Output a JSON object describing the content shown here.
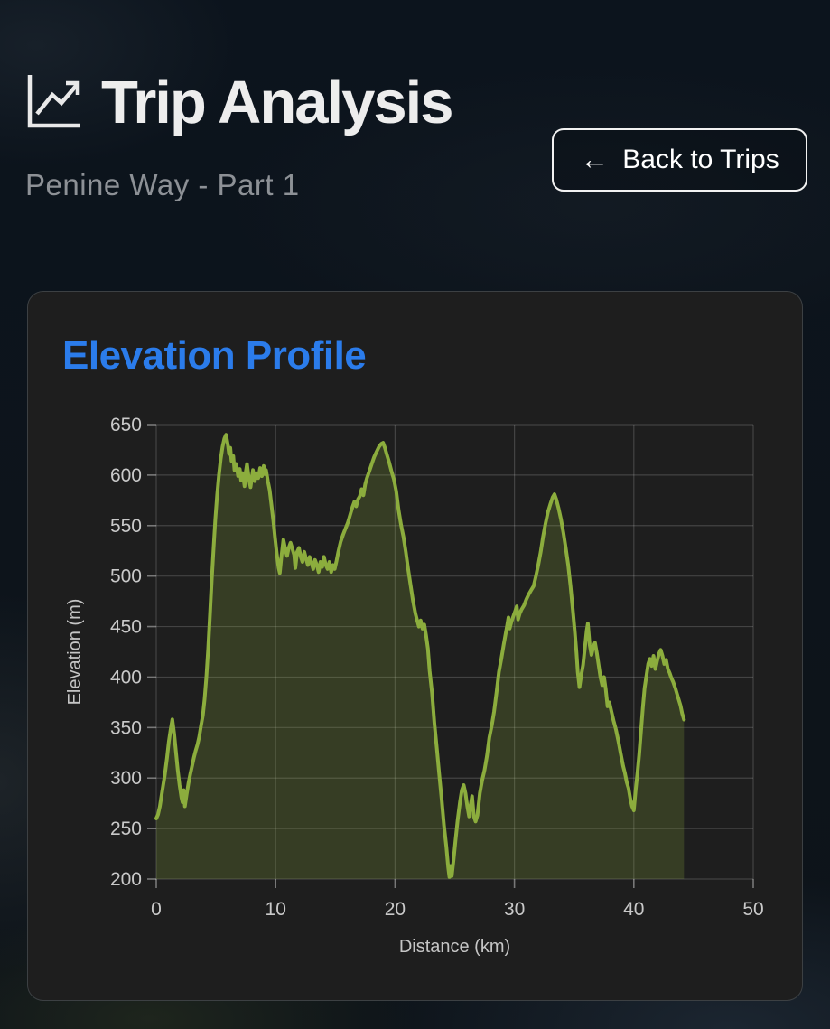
{
  "header": {
    "title": "Trip Analysis",
    "subtitle": "Penine Way - Part 1",
    "icon": "chart-line-up-icon",
    "back_arrow": "←",
    "back_label": "Back to Trips"
  },
  "card": {
    "title": "Elevation Profile",
    "title_color": "#2b7ceb"
  },
  "colors": {
    "accent_blue": "#2b7ceb",
    "line_green": "#8cad3d",
    "fill_green": "rgba(140,173,61,0.22)",
    "card_bg": "#1e1e1e",
    "text_light": "#ededed",
    "text_gray": "#8d9196",
    "axis_gray": "#c9c9c9"
  },
  "chart_data": {
    "type": "area",
    "title": "Elevation Profile",
    "xlabel": "Distance (km)",
    "ylabel": "Elevation (m)",
    "xlim": [
      0,
      50
    ],
    "ylim": [
      200,
      650
    ],
    "x_ticks": [
      0,
      10,
      20,
      30,
      40,
      50
    ],
    "y_ticks": [
      200,
      250,
      300,
      350,
      400,
      450,
      500,
      550,
      600,
      650
    ],
    "grid": true,
    "legend": false,
    "series": [
      {
        "name": "elevation",
        "points": [
          [
            0,
            260
          ],
          [
            0.15,
            264
          ],
          [
            0.3,
            272
          ],
          [
            0.5,
            287
          ],
          [
            0.7,
            302
          ],
          [
            0.9,
            320
          ],
          [
            1.05,
            336
          ],
          [
            1.2,
            348
          ],
          [
            1.35,
            358
          ],
          [
            1.5,
            344
          ],
          [
            1.65,
            326
          ],
          [
            1.8,
            308
          ],
          [
            1.95,
            293
          ],
          [
            2.1,
            281
          ],
          [
            2.2,
            276
          ],
          [
            2.3,
            288
          ],
          [
            2.4,
            272
          ],
          [
            2.55,
            284
          ],
          [
            2.7,
            295
          ],
          [
            2.85,
            304
          ],
          [
            3,
            312
          ],
          [
            3.15,
            320
          ],
          [
            3.3,
            327
          ],
          [
            3.45,
            333
          ],
          [
            3.6,
            341
          ],
          [
            3.75,
            352
          ],
          [
            3.9,
            362
          ],
          [
            4.05,
            378
          ],
          [
            4.2,
            400
          ],
          [
            4.35,
            428
          ],
          [
            4.5,
            462
          ],
          [
            4.65,
            497
          ],
          [
            4.8,
            528
          ],
          [
            4.95,
            556
          ],
          [
            5.1,
            580
          ],
          [
            5.25,
            600
          ],
          [
            5.4,
            616
          ],
          [
            5.55,
            628
          ],
          [
            5.7,
            636
          ],
          [
            5.85,
            640
          ],
          [
            6,
            630
          ],
          [
            6.1,
            621
          ],
          [
            6.2,
            627
          ],
          [
            6.3,
            614
          ],
          [
            6.45,
            619
          ],
          [
            6.55,
            605
          ],
          [
            6.7,
            611
          ],
          [
            6.85,
            599
          ],
          [
            7,
            606
          ],
          [
            7.1,
            595
          ],
          [
            7.25,
            602
          ],
          [
            7.4,
            589
          ],
          [
            7.5,
            603
          ],
          [
            7.6,
            611
          ],
          [
            7.75,
            597
          ],
          [
            7.9,
            588
          ],
          [
            8,
            597
          ],
          [
            8.1,
            605
          ],
          [
            8.25,
            594
          ],
          [
            8.4,
            602
          ],
          [
            8.55,
            597
          ],
          [
            8.7,
            607
          ],
          [
            8.85,
            599
          ],
          [
            9,
            609
          ],
          [
            9.1,
            601
          ],
          [
            9.2,
            605
          ],
          [
            9.35,
            594
          ],
          [
            9.5,
            585
          ],
          [
            9.65,
            570
          ],
          [
            9.8,
            555
          ],
          [
            9.95,
            538
          ],
          [
            10.1,
            522
          ],
          [
            10.25,
            508
          ],
          [
            10.35,
            503
          ],
          [
            10.5,
            521
          ],
          [
            10.65,
            536
          ],
          [
            10.8,
            527
          ],
          [
            10.95,
            520
          ],
          [
            11.1,
            528
          ],
          [
            11.25,
            533
          ],
          [
            11.4,
            527
          ],
          [
            11.55,
            521
          ],
          [
            11.65,
            508
          ],
          [
            11.8,
            524
          ],
          [
            11.95,
            528
          ],
          [
            12.1,
            519
          ],
          [
            12.25,
            514
          ],
          [
            12.4,
            524
          ],
          [
            12.55,
            517
          ],
          [
            12.7,
            511
          ],
          [
            12.85,
            519
          ],
          [
            13,
            513
          ],
          [
            13.15,
            507
          ],
          [
            13.3,
            516
          ],
          [
            13.45,
            511
          ],
          [
            13.6,
            504
          ],
          [
            13.75,
            514
          ],
          [
            13.9,
            509
          ],
          [
            14.05,
            519
          ],
          [
            14.2,
            511
          ],
          [
            14.35,
            507
          ],
          [
            14.5,
            514
          ],
          [
            14.65,
            504
          ],
          [
            14.8,
            511
          ],
          [
            14.95,
            507
          ],
          [
            15.1,
            515
          ],
          [
            15.25,
            524
          ],
          [
            15.45,
            534
          ],
          [
            15.65,
            541
          ],
          [
            15.85,
            547
          ],
          [
            16.05,
            553
          ],
          [
            16.25,
            561
          ],
          [
            16.45,
            569
          ],
          [
            16.6,
            574
          ],
          [
            16.75,
            569
          ],
          [
            16.9,
            576
          ],
          [
            17.05,
            579
          ],
          [
            17.2,
            586
          ],
          [
            17.35,
            580
          ],
          [
            17.5,
            591
          ],
          [
            17.65,
            597
          ],
          [
            17.85,
            604
          ],
          [
            18.05,
            611
          ],
          [
            18.25,
            618
          ],
          [
            18.45,
            623
          ],
          [
            18.65,
            628
          ],
          [
            18.85,
            631
          ],
          [
            19,
            632
          ],
          [
            19.15,
            627
          ],
          [
            19.3,
            621
          ],
          [
            19.5,
            613
          ],
          [
            19.7,
            604
          ],
          [
            19.9,
            596
          ],
          [
            20.1,
            584
          ],
          [
            20.3,
            565
          ],
          [
            20.5,
            551
          ],
          [
            20.7,
            539
          ],
          [
            20.9,
            524
          ],
          [
            21.1,
            507
          ],
          [
            21.3,
            491
          ],
          [
            21.5,
            476
          ],
          [
            21.7,
            463
          ],
          [
            21.85,
            456
          ],
          [
            22,
            450
          ],
          [
            22.15,
            456
          ],
          [
            22.3,
            448
          ],
          [
            22.45,
            452
          ],
          [
            22.6,
            441
          ],
          [
            22.75,
            428
          ],
          [
            22.9,
            406
          ],
          [
            23.1,
            384
          ],
          [
            23.3,
            354
          ],
          [
            23.5,
            329
          ],
          [
            23.7,
            304
          ],
          [
            23.9,
            279
          ],
          [
            24.1,
            253
          ],
          [
            24.3,
            232
          ],
          [
            24.45,
            212
          ],
          [
            24.55,
            202
          ],
          [
            24.65,
            213
          ],
          [
            24.75,
            203
          ],
          [
            24.9,
            219
          ],
          [
            25.05,
            237
          ],
          [
            25.25,
            259
          ],
          [
            25.45,
            277
          ],
          [
            25.6,
            288
          ],
          [
            25.75,
            293
          ],
          [
            25.9,
            285
          ],
          [
            26.05,
            272
          ],
          [
            26.2,
            262
          ],
          [
            26.3,
            271
          ],
          [
            26.45,
            282
          ],
          [
            26.6,
            262
          ],
          [
            26.75,
            257
          ],
          [
            26.9,
            263
          ],
          [
            27.1,
            285
          ],
          [
            27.3,
            298
          ],
          [
            27.5,
            308
          ],
          [
            27.7,
            322
          ],
          [
            27.9,
            340
          ],
          [
            28.1,
            352
          ],
          [
            28.3,
            366
          ],
          [
            28.5,
            385
          ],
          [
            28.7,
            405
          ],
          [
            28.9,
            418
          ],
          [
            29.1,
            432
          ],
          [
            29.25,
            442
          ],
          [
            29.4,
            452
          ],
          [
            29.5,
            459
          ],
          [
            29.6,
            448
          ],
          [
            29.75,
            455
          ],
          [
            29.9,
            460
          ],
          [
            30.05,
            465
          ],
          [
            30.2,
            470
          ],
          [
            30.3,
            457
          ],
          [
            30.45,
            463
          ],
          [
            30.6,
            467
          ],
          [
            30.8,
            471
          ],
          [
            31,
            477
          ],
          [
            31.2,
            482
          ],
          [
            31.4,
            486
          ],
          [
            31.6,
            490
          ],
          [
            31.8,
            500
          ],
          [
            32,
            511
          ],
          [
            32.2,
            524
          ],
          [
            32.4,
            539
          ],
          [
            32.6,
            552
          ],
          [
            32.8,
            563
          ],
          [
            33,
            571
          ],
          [
            33.2,
            578
          ],
          [
            33.35,
            581
          ],
          [
            33.5,
            576
          ],
          [
            33.7,
            567
          ],
          [
            33.9,
            556
          ],
          [
            34.1,
            543
          ],
          [
            34.3,
            528
          ],
          [
            34.5,
            511
          ],
          [
            34.7,
            490
          ],
          [
            34.9,
            465
          ],
          [
            35.05,
            445
          ],
          [
            35.2,
            424
          ],
          [
            35.3,
            405
          ],
          [
            35.45,
            390
          ],
          [
            35.6,
            402
          ],
          [
            35.75,
            412
          ],
          [
            35.9,
            429
          ],
          [
            36.05,
            446
          ],
          [
            36.15,
            453
          ],
          [
            36.3,
            432
          ],
          [
            36.45,
            422
          ],
          [
            36.6,
            430
          ],
          [
            36.75,
            434
          ],
          [
            36.9,
            424
          ],
          [
            37.05,
            412
          ],
          [
            37.2,
            400
          ],
          [
            37.35,
            392
          ],
          [
            37.5,
            400
          ],
          [
            37.65,
            388
          ],
          [
            37.8,
            371
          ],
          [
            37.95,
            375
          ],
          [
            38.1,
            367
          ],
          [
            38.3,
            357
          ],
          [
            38.5,
            348
          ],
          [
            38.7,
            337
          ],
          [
            38.9,
            324
          ],
          [
            39.1,
            312
          ],
          [
            39.25,
            305
          ],
          [
            39.4,
            296
          ],
          [
            39.55,
            290
          ],
          [
            39.7,
            280
          ],
          [
            39.85,
            272
          ],
          [
            40,
            268
          ],
          [
            40.15,
            288
          ],
          [
            40.3,
            305
          ],
          [
            40.45,
            323
          ],
          [
            40.6,
            346
          ],
          [
            40.75,
            369
          ],
          [
            40.9,
            389
          ],
          [
            41.05,
            401
          ],
          [
            41.2,
            413
          ],
          [
            41.35,
            418
          ],
          [
            41.5,
            411
          ],
          [
            41.65,
            421
          ],
          [
            41.8,
            408
          ],
          [
            41.95,
            416
          ],
          [
            42.1,
            423
          ],
          [
            42.25,
            427
          ],
          [
            42.4,
            421
          ],
          [
            42.55,
            413
          ],
          [
            42.7,
            417
          ],
          [
            42.85,
            408
          ],
          [
            43,
            404
          ],
          [
            43.15,
            399
          ],
          [
            43.3,
            395
          ],
          [
            43.5,
            388
          ],
          [
            43.7,
            380
          ],
          [
            43.9,
            372
          ],
          [
            44.05,
            364
          ],
          [
            44.2,
            358
          ]
        ]
      }
    ],
    "line_color": "#8cad3d",
    "fill_color": "rgba(140,173,61,0.22)"
  }
}
